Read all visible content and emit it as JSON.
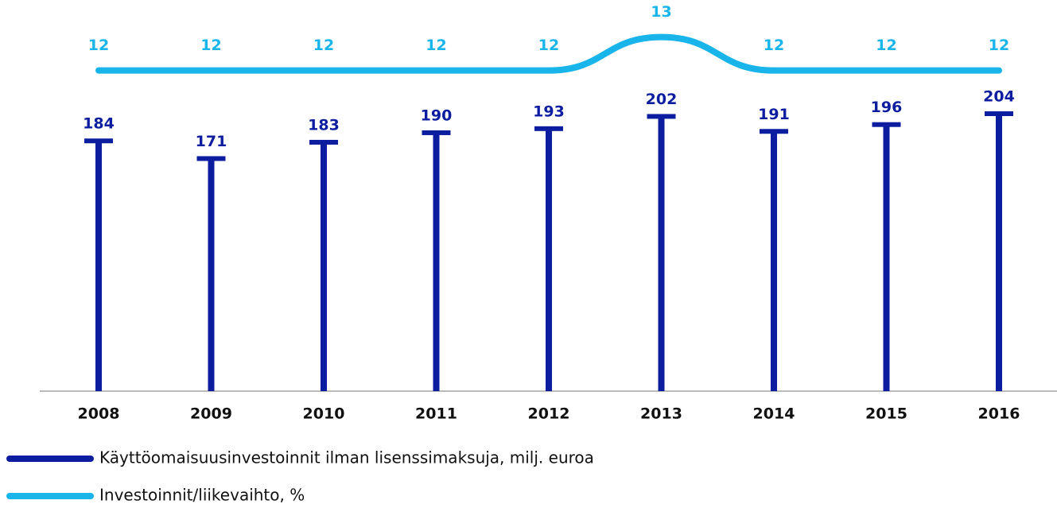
{
  "chart_data": {
    "type": "bar-line",
    "categories": [
      "2008",
      "2009",
      "2010",
      "2011",
      "2012",
      "2013",
      "2014",
      "2015",
      "2016"
    ],
    "series": [
      {
        "name": "Käyttöomaisuusinvestoinnit ilman lisenssimaksuja, milj. euroa",
        "color": "#0d1d9f",
        "type": "bar",
        "values": [
          184,
          171,
          183,
          190,
          193,
          202,
          191,
          196,
          204
        ]
      },
      {
        "name": "Investoinnit/liikevaihto, %",
        "color": "#18b4ea",
        "type": "line",
        "axis": "y2",
        "values": [
          12,
          12,
          12,
          12,
          12,
          13,
          12,
          12,
          12
        ]
      }
    ],
    "ylim": [
      0,
      280
    ],
    "y2lim": [
      2.4,
      13.8
    ],
    "legend": "bottom-left"
  }
}
